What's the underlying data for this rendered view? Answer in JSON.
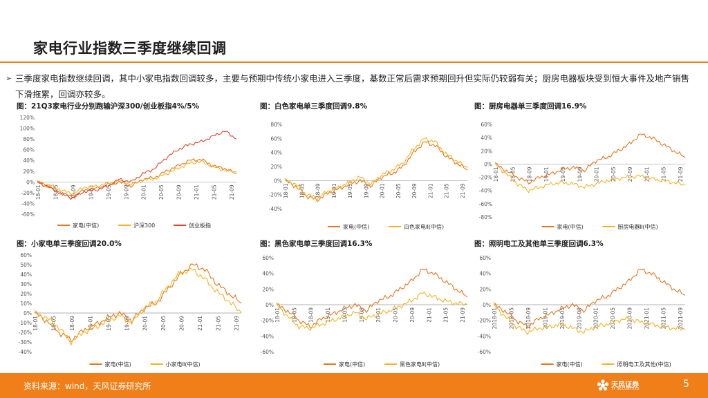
{
  "header": {
    "title": "家电行业指数三季度继续回调"
  },
  "bullet": {
    "mark": "➢",
    "text": "三季度家电指数继续回调，其中小家电指数回调较多，主要与预期中传统小家电进入三季度，基数正常后需求预期回升但实际仍较弱有关；厨房电器板块受到恒大事件及地产销售下滑拖累，回调亦较多。"
  },
  "colors": {
    "accent": "#f07f1a",
    "series_orange": "#e8761e",
    "series_yellow": "#f5b324",
    "series_red": "#e0452a"
  },
  "footer": {
    "source": "资料来源：wind，天风证券研究所",
    "logo_text": "天风证券",
    "logo_sub": "TF SECURITIES",
    "page_number": "5"
  },
  "chart_data": [
    {
      "id": "c1",
      "type": "line",
      "title": "图：21Q3家电行业分别跑输沪深300/创业板指4%/5%",
      "yticks": [
        "120%",
        "100%",
        "80%",
        "60%",
        "40%",
        "20%",
        "0%",
        "-20%",
        "-40%",
        "-60%"
      ],
      "ylim": [
        -60,
        120
      ],
      "yticks_values": [
        120,
        100,
        80,
        60,
        40,
        20,
        0,
        -20,
        -40,
        -60
      ],
      "xticks": [
        "18-01",
        "18-05",
        "18-09",
        "19-01",
        "19-05",
        "19-09",
        "20-01",
        "20-05",
        "20-09",
        "21-01",
        "21-05",
        "21-09"
      ],
      "series": [
        {
          "name": "家电(中信)",
          "color": "#e8761e",
          "values": [
            0,
            -8,
            -20,
            -28,
            -15,
            -12,
            -5,
            0,
            -8,
            5,
            8,
            20,
            30,
            40,
            42,
            30,
            25,
            15
          ]
        },
        {
          "name": "沪深300",
          "color": "#f5b324",
          "values": [
            0,
            -5,
            -15,
            -22,
            -10,
            -8,
            -3,
            2,
            -5,
            3,
            6,
            15,
            25,
            35,
            38,
            28,
            22,
            18
          ]
        },
        {
          "name": "创业板指",
          "color": "#e0452a",
          "values": [
            0,
            -10,
            -22,
            -30,
            -18,
            -15,
            -8,
            5,
            0,
            15,
            25,
            45,
            60,
            70,
            75,
            85,
            95,
            80
          ]
        }
      ]
    },
    {
      "id": "c2",
      "type": "line",
      "title": "图：白色家电单三季度回调9.8%",
      "yticks": [
        "80%",
        "60%",
        "40%",
        "20%",
        "0%",
        "-20%",
        "-40%"
      ],
      "ylim": [
        -40,
        80
      ],
      "yticks_values": [
        80,
        60,
        40,
        20,
        0,
        -20,
        -40
      ],
      "xticks": [
        "18-01",
        "18-05",
        "18-09",
        "19-01",
        "19-05",
        "19-09",
        "20-01",
        "20-05",
        "20-09",
        "21-01",
        "21-05",
        "21-09"
      ],
      "series": [
        {
          "name": "家电(中信)",
          "color": "#e8761e",
          "values": [
            0,
            -8,
            -22,
            -28,
            -18,
            -12,
            -5,
            0,
            -8,
            5,
            10,
            20,
            40,
            55,
            50,
            35,
            25,
            15
          ]
        },
        {
          "name": "白色家电Ⅱ(中信)",
          "color": "#f5b324",
          "values": [
            0,
            -5,
            -20,
            -25,
            -15,
            -10,
            -2,
            5,
            -5,
            8,
            15,
            25,
            45,
            60,
            55,
            38,
            28,
            18
          ]
        }
      ]
    },
    {
      "id": "c3",
      "type": "line",
      "title": "图：厨房电器单三季度回调16.9%",
      "yticks": [
        "60%",
        "40%",
        "20%",
        "0%",
        "-20%",
        "-40%",
        "-60%",
        "-80%"
      ],
      "ylim": [
        -80,
        60
      ],
      "yticks_values": [
        60,
        40,
        20,
        0,
        -20,
        -40,
        -60,
        -80
      ],
      "xticks": [
        "18-01",
        "18-05",
        "18-09",
        "19-01",
        "19-05",
        "19-09",
        "20-01",
        "20-05",
        "20-09",
        "21-01",
        "21-05",
        "21-09"
      ],
      "series": [
        {
          "name": "家电(中信)",
          "color": "#e8761e",
          "values": [
            0,
            -10,
            -20,
            -28,
            -20,
            -15,
            -8,
            -5,
            -10,
            5,
            10,
            20,
            30,
            45,
            40,
            30,
            20,
            10
          ]
        },
        {
          "name": "厨房电器Ⅱ(中信)",
          "color": "#f5b324",
          "values": [
            0,
            -15,
            -30,
            -40,
            -35,
            -30,
            -28,
            -30,
            -35,
            -30,
            -25,
            -22,
            -20,
            -18,
            -22,
            -25,
            -28,
            -32
          ]
        }
      ]
    },
    {
      "id": "c4",
      "type": "line",
      "title": "图：小家电单三季度回调20.0%",
      "yticks": [
        "60%",
        "50%",
        "40%",
        "30%",
        "20%",
        "10%",
        "0%",
        "-10%",
        "-20%",
        "-30%",
        "-40%"
      ],
      "ylim": [
        -40,
        60
      ],
      "yticks_values": [
        60,
        50,
        40,
        30,
        20,
        10,
        0,
        -10,
        -20,
        -30,
        -40
      ],
      "xticks": [
        "18-01",
        "18-05",
        "18-09",
        "19-01",
        "19-05",
        "19-09",
        "20-01",
        "20-05",
        "20-09",
        "21-01",
        "21-05",
        "21-09"
      ],
      "series": [
        {
          "name": "家电(中信)",
          "color": "#e8761e",
          "values": [
            0,
            -8,
            -20,
            -28,
            -18,
            -12,
            -5,
            0,
            -8,
            5,
            10,
            25,
            40,
            50,
            45,
            30,
            20,
            10
          ]
        },
        {
          "name": "小家电Ⅱ(中信)",
          "color": "#f5b324",
          "values": [
            0,
            -5,
            -15,
            -30,
            -20,
            -15,
            -8,
            -3,
            -10,
            5,
            12,
            28,
            42,
            45,
            35,
            22,
            12,
            0
          ]
        }
      ]
    },
    {
      "id": "c5",
      "type": "line",
      "title": "图：黑色家电单三季度回调16.3%",
      "yticks": [
        "60%",
        "40%",
        "20%",
        "0%",
        "-20%",
        "-40%",
        "-60%"
      ],
      "ylim": [
        -60,
        60
      ],
      "yticks_values": [
        60,
        40,
        20,
        0,
        -20,
        -40,
        -60
      ],
      "xticks": [
        "18-01",
        "18-05",
        "18-09",
        "19-01",
        "19-05",
        "19-09",
        "20-01",
        "20-05",
        "20-09",
        "21-01",
        "21-05",
        "21-09"
      ],
      "series": [
        {
          "name": "家电(中信)",
          "color": "#e8761e",
          "values": [
            0,
            -8,
            -20,
            -28,
            -18,
            -12,
            -5,
            0,
            -8,
            5,
            10,
            20,
            30,
            45,
            40,
            30,
            20,
            10
          ]
        },
        {
          "name": "黑色家电Ⅱ(中信)",
          "color": "#f5b324",
          "values": [
            0,
            -15,
            -28,
            -30,
            -25,
            -20,
            -15,
            -10,
            -18,
            -12,
            -8,
            -2,
            5,
            15,
            10,
            5,
            2,
            0
          ]
        }
      ]
    },
    {
      "id": "c6",
      "type": "line",
      "title": "图：照明电工及其他单三季度回调6.3%",
      "yticks": [
        "60%",
        "40%",
        "20%",
        "0%",
        "-20%",
        "-40%",
        "-60%"
      ],
      "ylim": [
        -60,
        60
      ],
      "yticks_values": [
        60,
        40,
        20,
        0,
        -20,
        -40,
        -60
      ],
      "xticks": [
        "2018-01",
        "2018-05",
        "2018-09",
        "2019-01",
        "2019-05",
        "2019-09",
        "2020-01",
        "2020-05",
        "2020-09",
        "2021-01",
        "2021-05",
        "2021-09"
      ],
      "series": [
        {
          "name": "家电(中信)",
          "color": "#e8761e",
          "values": [
            0,
            -8,
            -20,
            -28,
            -18,
            -12,
            -5,
            0,
            -8,
            5,
            10,
            20,
            30,
            45,
            40,
            30,
            20,
            12
          ]
        },
        {
          "name": "照明电工及其他(中信)",
          "color": "#f5b324",
          "values": [
            0,
            -15,
            -28,
            -35,
            -30,
            -28,
            -25,
            -30,
            -35,
            -28,
            -25,
            -20,
            -18,
            -22,
            -25,
            -28,
            -30,
            -32
          ]
        }
      ]
    }
  ]
}
